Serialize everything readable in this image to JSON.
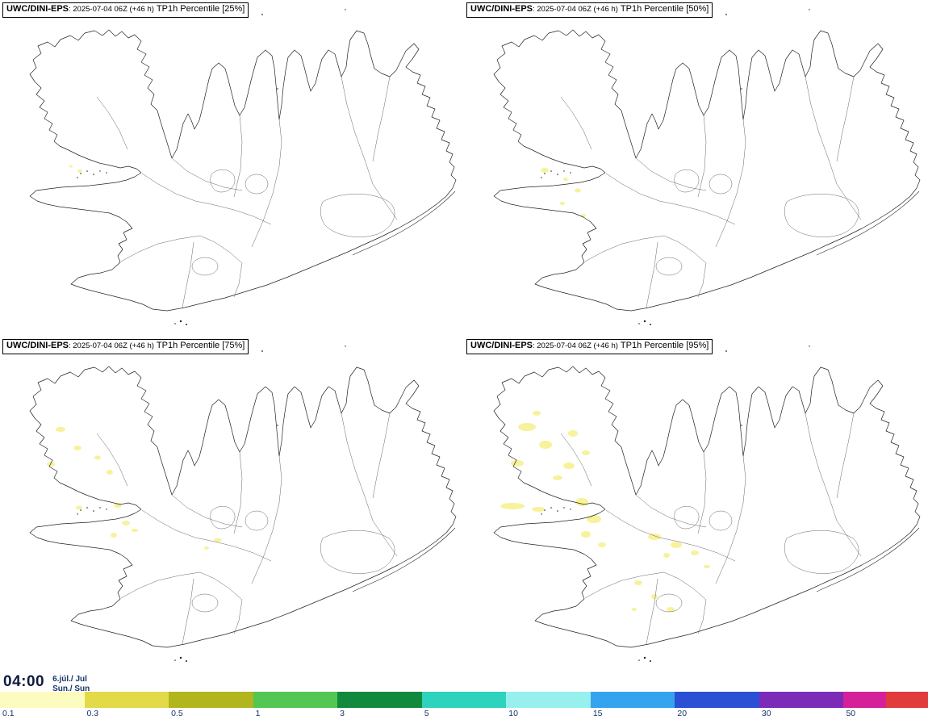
{
  "panels": [
    {
      "model": "UWC/DINI-EPS",
      "run": ": 2025-07-04 06Z (+46 h)",
      "param": "TP1h Percentile [25%]",
      "blobs": [
        [
          99,
          212,
          3,
          2
        ],
        [
          88,
          206,
          2,
          1.5
        ]
      ]
    },
    {
      "model": "UWC/DINI-EPS",
      "run": ": 2025-07-04 06Z (+46 h)",
      "param": "TP1h Percentile [50%]",
      "blobs": [
        [
          100,
          211,
          5,
          3
        ],
        [
          126,
          222,
          3,
          2
        ],
        [
          141,
          236,
          4,
          2.5
        ],
        [
          122,
          252,
          3,
          2
        ],
        [
          148,
          267,
          3,
          2
        ]
      ]
    },
    {
      "model": "UWC/DINI-EPS",
      "run": ": 2025-07-04 06Z (+46 h)",
      "param": "TP1h Percentile [75%]",
      "blobs": [
        [
          75,
          115,
          6,
          3
        ],
        [
          96,
          138,
          5,
          3
        ],
        [
          63,
          158,
          5,
          3
        ],
        [
          121,
          150,
          4,
          2.5
        ],
        [
          136,
          168,
          4,
          3
        ],
        [
          98,
          212,
          4,
          2.5
        ],
        [
          146,
          209,
          5,
          3
        ],
        [
          156,
          231,
          5,
          3
        ],
        [
          141,
          246,
          4,
          3
        ],
        [
          167,
          240,
          4,
          2
        ],
        [
          270,
          252,
          5,
          2.5
        ],
        [
          256,
          262,
          3,
          2
        ]
      ]
    },
    {
      "model": "UWC/DINI-EPS",
      "run": ": 2025-07-04 06Z (+46 h)",
      "param": "TP1h Percentile [95%]",
      "blobs": [
        [
          78,
          112,
          11,
          5
        ],
        [
          101,
          134,
          8,
          5
        ],
        [
          66,
          157,
          8,
          4
        ],
        [
          130,
          160,
          7,
          4
        ],
        [
          151,
          144,
          5,
          3
        ],
        [
          116,
          175,
          6,
          3
        ],
        [
          90,
          95,
          5,
          3
        ],
        [
          135,
          120,
          6,
          4
        ],
        [
          60,
          210,
          15,
          4
        ],
        [
          92,
          214,
          8,
          3
        ],
        [
          146,
          205,
          8,
          5
        ],
        [
          161,
          226,
          9,
          5
        ],
        [
          151,
          245,
          6,
          4
        ],
        [
          171,
          258,
          5,
          3
        ],
        [
          236,
          248,
          8,
          4
        ],
        [
          263,
          258,
          7,
          4
        ],
        [
          286,
          268,
          5,
          3
        ],
        [
          251,
          271,
          4,
          3
        ],
        [
          301,
          285,
          4,
          2
        ],
        [
          216,
          305,
          5,
          3
        ],
        [
          236,
          322,
          4,
          3
        ],
        [
          256,
          338,
          5,
          3
        ],
        [
          211,
          338,
          3,
          2
        ]
      ]
    }
  ],
  "footer": {
    "time": "04:00",
    "date": "6.júl./ Jul",
    "day": "Sun./ Sun",
    "text_color": "#17356b"
  },
  "colorbar": {
    "ticks": [
      "0.1",
      "0.3",
      "0.5",
      "1",
      "3",
      "5",
      "10",
      "15",
      "20",
      "30",
      "50"
    ],
    "segment_colors": [
      "#fdfcc0",
      "#e2da48",
      "#b2b51c",
      "#53c653",
      "#128a3e",
      "#2ed3be",
      "#97f0ee",
      "#36a3ef",
      "#2b50d4",
      "#7b2bb8",
      "#d4219a",
      "#e23b3b"
    ],
    "segment_widths": [
      2,
      2,
      2,
      2,
      2,
      2,
      2,
      2,
      2,
      2,
      1,
      1
    ],
    "blob_color": "#f7f29b"
  }
}
